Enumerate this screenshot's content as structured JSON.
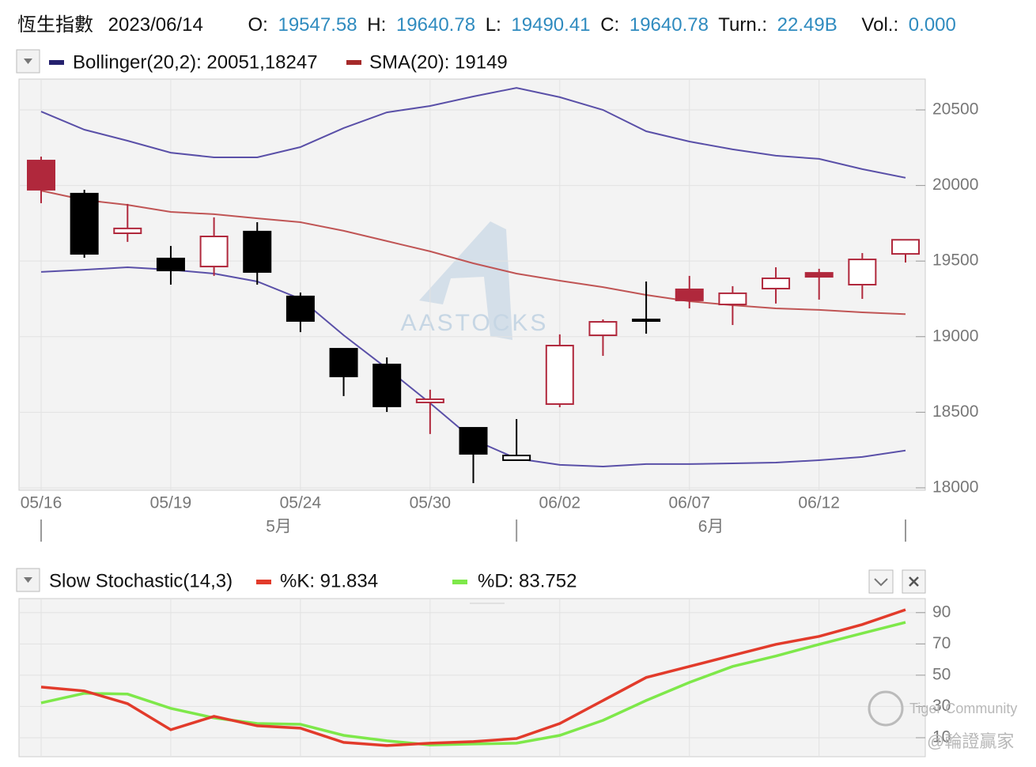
{
  "header": {
    "title": "恆生指數",
    "date": "2023/06/14",
    "fields": [
      {
        "label": "O:",
        "value": "19547.58"
      },
      {
        "label": "H:",
        "value": "19640.78"
      },
      {
        "label": "L:",
        "value": "19490.41"
      },
      {
        "label": "C:",
        "value": "19640.78"
      },
      {
        "label": "Turn.:",
        "value": "22.49B"
      },
      {
        "label": "Vol.:",
        "value": "0.000"
      }
    ]
  },
  "watermarks": [
    "AASTOCKS",
    "Tiger Community",
    "@輪證贏家"
  ],
  "chart_data": [
    {
      "type": "candlestick",
      "categories": [
        "05/16",
        null,
        null,
        "05/19",
        null,
        null,
        "05/24",
        null,
        null,
        "05/30",
        null,
        null,
        "06/02",
        null,
        null,
        "06/07",
        null,
        null,
        "06/12",
        null,
        null
      ],
      "month_labels": [
        "5月",
        "6月"
      ],
      "open": [
        20165,
        19946,
        19684,
        19517,
        19464,
        19695,
        19266,
        18920,
        18816,
        18565,
        18397,
        18214,
        18554,
        19009,
        19114,
        19313,
        19213,
        19318,
        19396,
        19344,
        19547.58
      ],
      "high": [
        20191,
        19972,
        19878,
        19600,
        19789,
        19757,
        19292,
        18920,
        18863,
        18649,
        18397,
        18455,
        19015,
        19114,
        19365,
        19402,
        19334,
        19459,
        19449,
        19553,
        19640.78
      ],
      "low": [
        19883,
        19522,
        19627,
        19344,
        19402,
        19344,
        19030,
        18607,
        18502,
        18356,
        18031,
        18183,
        18533,
        18873,
        19020,
        19187,
        19077,
        19219,
        19245,
        19250,
        19490.41
      ],
      "close": [
        19972,
        19548,
        19716,
        19438,
        19663,
        19428,
        19104,
        18737,
        18539,
        18586,
        18225,
        18183,
        18941,
        19098,
        19104,
        19240,
        19287,
        19386,
        19422,
        19511,
        19640.78
      ],
      "colors": [
        "#b0283c",
        "#000000",
        "#b0283c",
        "#000000",
        "#b0283c",
        "#000000",
        "#000000",
        "#000000",
        "#000000",
        "#b0283c",
        "#000000",
        "#000000",
        "#b0283c",
        "#b0283c",
        "#000000",
        "#b0283c",
        "#b0283c",
        "#b0283c",
        "#b0283c",
        "#b0283c",
        "#b0283c"
      ],
      "fills": [
        "#b0283c",
        "#000000",
        "#ffffff",
        "#000000",
        "#ffffff",
        "#000000",
        "#000000",
        "#000000",
        "#000000",
        "#ffffff",
        "#000000",
        "#ffffff",
        "#ffffff",
        "#ffffff",
        "#000000",
        "#b0283c",
        "#ffffff",
        "#ffffff",
        "#b0283c",
        "#ffffff",
        "#ffffff"
      ],
      "overlays": [
        {
          "name": "Bollinger(20,2): 20051,18247",
          "color": "#5a50a8",
          "legend_color": "#25216e",
          "upper": [
            20489,
            20369,
            20296,
            20217,
            20186,
            20186,
            20254,
            20380,
            20484,
            20526,
            20589,
            20646,
            20584,
            20500,
            20359,
            20291,
            20239,
            20197,
            20176,
            20108,
            20051
          ],
          "lower": [
            19428,
            19443,
            19459,
            19443,
            19417,
            19365,
            19250,
            19009,
            18790,
            18560,
            18319,
            18194,
            18152,
            18141,
            18157,
            18157,
            18162,
            18167,
            18183,
            18204,
            18247
          ]
        },
        {
          "name": "SMA(20): 19149",
          "color": "#c05555",
          "legend_color": "#a52a2a",
          "values": [
            19966,
            19904,
            19872,
            19825,
            19810,
            19783,
            19757,
            19700,
            19632,
            19564,
            19485,
            19417,
            19370,
            19328,
            19276,
            19234,
            19208,
            19187,
            19177,
            19161,
            19149
          ]
        }
      ],
      "ylim": [
        17984,
        20704
      ],
      "yticks": [
        18000,
        18500,
        19000,
        19500,
        20000,
        20500
      ],
      "grid": true
    },
    {
      "type": "line",
      "title": "Slow Stochastic(14,3)",
      "series": [
        {
          "name": "%K: 91.834",
          "color": "#e23b2b",
          "values": [
            42.4,
            39.9,
            31.8,
            15.1,
            23.7,
            17.6,
            16.1,
            7.0,
            5.0,
            6.5,
            7.5,
            9.5,
            19.1,
            33.8,
            48.5,
            55.6,
            62.7,
            69.7,
            74.8,
            82.4,
            91.834
          ]
        },
        {
          "name": "%D: 83.752",
          "color": "#7ee84a",
          "values": [
            32.3,
            38.4,
            37.9,
            28.8,
            22.7,
            19.1,
            18.6,
            11.5,
            8.0,
            5.4,
            6.0,
            6.5,
            11.5,
            21.1,
            33.8,
            45.4,
            55.6,
            62.2,
            69.7,
            76.8,
            83.752
          ]
        }
      ],
      "ylim": [
        0,
        100
      ],
      "yticks": [
        10,
        30,
        50,
        70,
        90
      ],
      "grid": true
    }
  ]
}
